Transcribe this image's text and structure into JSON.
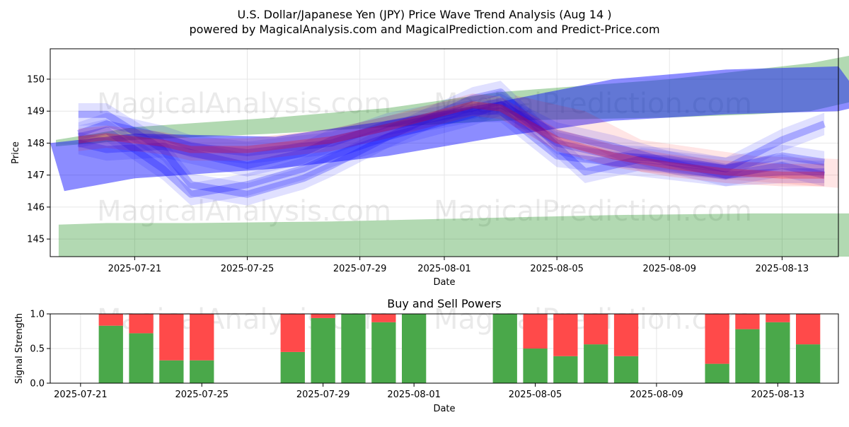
{
  "title_line1": "U.S. Dollar/Japanese Yen (JPY) Price Wave Trend Analysis (Aug 14 )",
  "title_line2": "powered by MagicalAnalysis.com and MagicalPrediction.com and Predict-Price.com",
  "watermarks": [
    "MagicalAnalysis.com",
    "MagicalPrediction.com"
  ],
  "colors": {
    "green_band": "#008000",
    "blue_band": "#0000ff",
    "red_band": "#ff0000",
    "buy": "#4aa84a",
    "sell": "#ff4a4a",
    "grid": "#e6e6e6"
  },
  "chart_data": [
    {
      "type": "area",
      "title": "",
      "xlabel": "Date",
      "ylabel": "Price",
      "x_date_range": [
        "2025-07-18",
        "2025-08-15"
      ],
      "ylim": [
        144.45,
        150.95
      ],
      "x_ticks": [
        "2025-07-21",
        "2025-07-25",
        "2025-07-29",
        "2025-08-01",
        "2025-08-05",
        "2025-08-09",
        "2025-08-13"
      ],
      "y_ticks": [
        145,
        146,
        147,
        148,
        149,
        150
      ],
      "grid": true,
      "bands": [
        {
          "name": "green-upper-band",
          "color": "green",
          "opacity": 0.3,
          "upper": [
            [
              0.2,
              148.1
            ],
            [
              3,
              148.5
            ],
            [
              8,
              148.8
            ],
            [
              12,
              149.1
            ],
            [
              16,
              149.6
            ],
            [
              22,
              150.0
            ],
            [
              25,
              150.3
            ],
            [
              27,
              150.5
            ],
            [
              28.5,
              150.75
            ]
          ],
          "lower": [
            [
              0.2,
              147.9
            ],
            [
              3,
              148.1
            ],
            [
              8,
              148.3
            ],
            [
              12,
              148.5
            ],
            [
              16,
              148.7
            ],
            [
              22,
              148.8
            ],
            [
              25,
              148.9
            ],
            [
              27,
              149.0
            ],
            [
              28.5,
              149.3
            ]
          ]
        },
        {
          "name": "green-lower-band",
          "color": "green",
          "opacity": 0.3,
          "upper": [
            [
              0.3,
              145.45
            ],
            [
              2,
              145.5
            ],
            [
              5,
              145.5
            ],
            [
              10,
              145.55
            ],
            [
              15,
              145.65
            ],
            [
              20,
              145.75
            ],
            [
              25,
              145.8
            ],
            [
              28.5,
              145.8
            ]
          ],
          "lower": [
            [
              0.3,
              144.45
            ],
            [
              2,
              144.45
            ],
            [
              5,
              144.45
            ],
            [
              10,
              144.45
            ],
            [
              15,
              144.45
            ],
            [
              20,
              144.45
            ],
            [
              25,
              144.45
            ],
            [
              28.5,
              144.45
            ]
          ]
        },
        {
          "name": "blue-trend-band",
          "color": "blue",
          "opacity": 0.45,
          "upper": [
            [
              0,
              148.0
            ],
            [
              3,
              148.3
            ],
            [
              8,
              148.2
            ],
            [
              12,
              148.7
            ],
            [
              16,
              149.3
            ],
            [
              20,
              150.0
            ],
            [
              24,
              150.3
            ],
            [
              28,
              150.4
            ],
            [
              29,
              149.2
            ]
          ],
          "lower": [
            [
              0.5,
              146.5
            ],
            [
              3,
              146.9
            ],
            [
              8,
              147.2
            ],
            [
              12,
              147.6
            ],
            [
              16,
              148.2
            ],
            [
              20,
              148.7
            ],
            [
              24,
              148.9
            ],
            [
              28,
              149.0
            ],
            [
              29,
              149.2
            ]
          ]
        },
        {
          "name": "red-forecast-band",
          "color": "red",
          "opacity": 0.1,
          "upper": [
            [
              16.5,
              149.5
            ],
            [
              19,
              149.0
            ],
            [
              21,
              148.1
            ],
            [
              25,
              147.6
            ],
            [
              28,
              147.5
            ]
          ],
          "lower": [
            [
              16.5,
              148.5
            ],
            [
              19,
              148.0
            ],
            [
              21,
              147.1
            ],
            [
              25,
              146.8
            ],
            [
              28,
              146.6
            ]
          ]
        }
      ],
      "wave_series": [
        {
          "name": "wave-1",
          "color": "blue",
          "values": [
            [
              1,
              148.2
            ],
            [
              2,
              148.4
            ],
            [
              4,
              147.2
            ],
            [
              5,
              146.4
            ],
            [
              7,
              146.7
            ],
            [
              9,
              147.2
            ],
            [
              10,
              147.6
            ],
            [
              12,
              148.2
            ],
            [
              15,
              148.9
            ],
            [
              16,
              149.2
            ],
            [
              18,
              148.3
            ],
            [
              20,
              147.9
            ],
            [
              22,
              147.4
            ],
            [
              24,
              147.0
            ],
            [
              26,
              147.1
            ],
            [
              27.5,
              147.1
            ]
          ]
        },
        {
          "name": "wave-2",
          "color": "blue",
          "values": [
            [
              1,
              148.9
            ],
            [
              2,
              148.9
            ],
            [
              4,
              147.8
            ],
            [
              5,
              146.7
            ],
            [
              7,
              146.4
            ],
            [
              9,
              146.9
            ],
            [
              10,
              147.3
            ],
            [
              12,
              148.2
            ],
            [
              15,
              149.4
            ],
            [
              16,
              149.6
            ],
            [
              18,
              147.9
            ],
            [
              19,
              147.1
            ],
            [
              21,
              147.5
            ],
            [
              24,
              147.2
            ],
            [
              26,
              148.1
            ],
            [
              27.5,
              148.6
            ]
          ]
        },
        {
          "name": "wave-3",
          "color": "blue",
          "values": [
            [
              1,
              148.0
            ],
            [
              2,
              147.8
            ],
            [
              4,
              147.9
            ],
            [
              5,
              147.7
            ],
            [
              7,
              147.3
            ],
            [
              9,
              147.7
            ],
            [
              10,
              148.1
            ],
            [
              12,
              148.5
            ],
            [
              15,
              149.0
            ],
            [
              16,
              149.0
            ],
            [
              18,
              147.6
            ],
            [
              20,
              147.4
            ],
            [
              22,
              147.2
            ],
            [
              24,
              147.0
            ],
            [
              26,
              147.3
            ],
            [
              27.5,
              147.0
            ]
          ]
        },
        {
          "name": "wave-4",
          "color": "blue",
          "values": [
            [
              1,
              148.3
            ],
            [
              2,
              148.6
            ],
            [
              4,
              148.2
            ],
            [
              5,
              147.9
            ],
            [
              7,
              147.7
            ],
            [
              9,
              147.9
            ],
            [
              10,
              148.0
            ],
            [
              12,
              148.6
            ],
            [
              15,
              149.1
            ],
            [
              16,
              149.3
            ],
            [
              18,
              148.0
            ],
            [
              20,
              147.6
            ],
            [
              22,
              147.5
            ],
            [
              24,
              147.2
            ],
            [
              26,
              147.6
            ],
            [
              27.5,
              147.4
            ]
          ]
        },
        {
          "name": "wave-5",
          "color": "red",
          "values": [
            [
              1,
              148.1
            ],
            [
              2,
              148.2
            ],
            [
              4,
              148.0
            ],
            [
              5,
              147.8
            ],
            [
              7,
              147.8
            ],
            [
              9,
              148.0
            ],
            [
              10,
              148.1
            ],
            [
              12,
              148.5
            ],
            [
              15,
              149.2
            ],
            [
              16,
              149.1
            ],
            [
              18,
              148.1
            ],
            [
              20,
              147.6
            ],
            [
              22,
              147.3
            ],
            [
              24,
              147.1
            ],
            [
              26,
              147.0
            ],
            [
              27.5,
              147.0
            ]
          ]
        }
      ]
    },
    {
      "type": "bar",
      "title": "Buy and Sell Powers",
      "xlabel": "Date",
      "ylabel": "Signal Strength",
      "x_date_range": [
        "2025-07-20",
        "2025-08-15"
      ],
      "ylim": [
        0,
        1.0
      ],
      "x_ticks": [
        "2025-07-21",
        "2025-07-25",
        "2025-07-29",
        "2025-08-01",
        "2025-08-05",
        "2025-08-09",
        "2025-08-13"
      ],
      "y_ticks": [
        "0.0",
        "0.5",
        "1.0"
      ],
      "grid": true,
      "series": [
        {
          "name": "buy",
          "color": "buy"
        },
        {
          "name": "sell",
          "color": "sell"
        }
      ],
      "bars": [
        {
          "day": 2.0,
          "buy": 0.83
        },
        {
          "day": 3.0,
          "buy": 0.72
        },
        {
          "day": 4.0,
          "buy": 0.33
        },
        {
          "day": 5.0,
          "buy": 0.33
        },
        {
          "day": 8.0,
          "buy": 0.45
        },
        {
          "day": 9.0,
          "buy": 0.94
        },
        {
          "day": 10.0,
          "buy": 1.0
        },
        {
          "day": 11.0,
          "buy": 0.88
        },
        {
          "day": 12.0,
          "buy": 1.0
        },
        {
          "day": 15.0,
          "buy": 1.0
        },
        {
          "day": 16.0,
          "buy": 0.5
        },
        {
          "day": 17.0,
          "buy": 0.39
        },
        {
          "day": 18.0,
          "buy": 0.56
        },
        {
          "day": 19.0,
          "buy": 0.39
        },
        {
          "day": 22.0,
          "buy": 0.28
        },
        {
          "day": 23.0,
          "buy": 0.78
        },
        {
          "day": 24.0,
          "buy": 0.88
        },
        {
          "day": 25.0,
          "buy": 0.56
        }
      ]
    }
  ]
}
